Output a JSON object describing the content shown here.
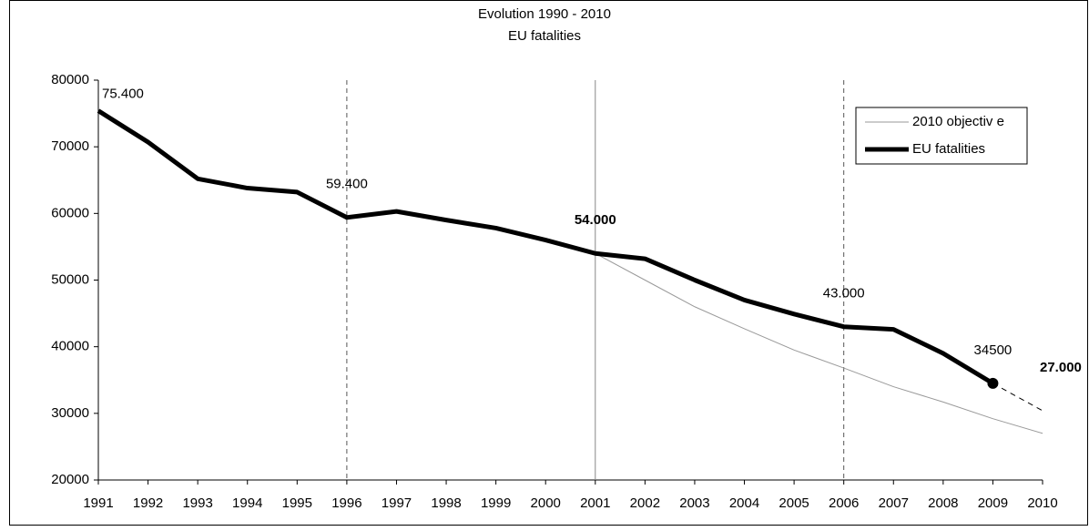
{
  "chart_data": {
    "type": "line",
    "title": "Evolution 1990 - 2010",
    "subtitle": "EU fatalities",
    "categories": [
      "1991",
      "1992",
      "1993",
      "1994",
      "1995",
      "1996",
      "1997",
      "1998",
      "1999",
      "2000",
      "2001",
      "2002",
      "2003",
      "2004",
      "2005",
      "2006",
      "2007",
      "2008",
      "2009",
      "2010"
    ],
    "ylim": [
      20000,
      80000
    ],
    "yticks": [
      20000,
      30000,
      40000,
      50000,
      60000,
      70000,
      80000
    ],
    "vlines": [
      {
        "at": "1996",
        "dashed": true
      },
      {
        "at": "2001",
        "dashed": false
      },
      {
        "at": "2006",
        "dashed": true
      }
    ],
    "legend": "top-right",
    "series": [
      {
        "name": "2010 objectiv e",
        "color": "#999999",
        "width": 1,
        "values": [
          null,
          null,
          null,
          null,
          null,
          null,
          null,
          null,
          null,
          null,
          54000,
          50000,
          46000,
          42700,
          39500,
          36800,
          34000,
          31700,
          29200,
          27000
        ],
        "value_labels": [
          null,
          null,
          null,
          null,
          null,
          null,
          null,
          null,
          null,
          null,
          null,
          null,
          null,
          null,
          null,
          null,
          null,
          null,
          null,
          "27.000"
        ],
        "bold_value_labels": true
      },
      {
        "name": "EU fatalities",
        "color": "#000000",
        "width": 5,
        "values": [
          75400,
          70700,
          65200,
          63800,
          63200,
          59400,
          60300,
          59000,
          57800,
          56000,
          54000,
          53200,
          50000,
          47000,
          44900,
          43000,
          42600,
          39000,
          34500,
          null
        ],
        "value_labels": [
          "75.400",
          null,
          null,
          null,
          null,
          "59.400",
          null,
          null,
          null,
          null,
          "54.000",
          null,
          null,
          null,
          null,
          "43.000",
          null,
          null,
          "34500",
          null
        ],
        "bold_label_at": "2001",
        "marker_at": "2009"
      },
      {
        "color": "#000000",
        "width": 1,
        "dashed": true,
        "values": [
          null,
          null,
          null,
          null,
          null,
          null,
          null,
          null,
          null,
          null,
          null,
          null,
          null,
          null,
          null,
          null,
          null,
          null,
          34500,
          30400
        ]
      }
    ]
  }
}
